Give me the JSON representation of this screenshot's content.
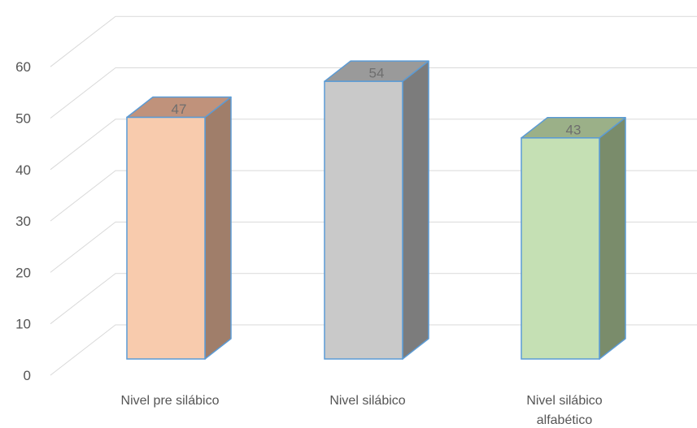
{
  "chart_data": {
    "type": "bar",
    "style": "3d-column",
    "title": "",
    "xlabel": "",
    "ylabel": "",
    "categories": [
      [
        "Nivel pre silábico"
      ],
      [
        "Nivel silábico"
      ],
      [
        "Nivel silábico",
        "alfabético"
      ]
    ],
    "values": [
      47,
      54,
      43
    ],
    "data_labels": [
      "47",
      "54",
      "43"
    ],
    "ylim": [
      0,
      60
    ],
    "yticks": [
      0,
      10,
      20,
      30,
      40,
      50,
      60
    ],
    "ytick_labels": [
      "0",
      "10",
      "20",
      "30",
      "40",
      "50",
      "60"
    ],
    "grid": true,
    "legend": "none",
    "colors": {
      "front": [
        "#f8cbad",
        "#c9c9c9",
        "#c5e0b4"
      ],
      "side": [
        "#a07e6a",
        "#7c7c7c",
        "#7a8c6b"
      ],
      "top": [
        "#c0927b",
        "#9a9a9a",
        "#9bb088"
      ],
      "outline": "#5b9bd5",
      "gridline": "#d9d9d9"
    }
  }
}
